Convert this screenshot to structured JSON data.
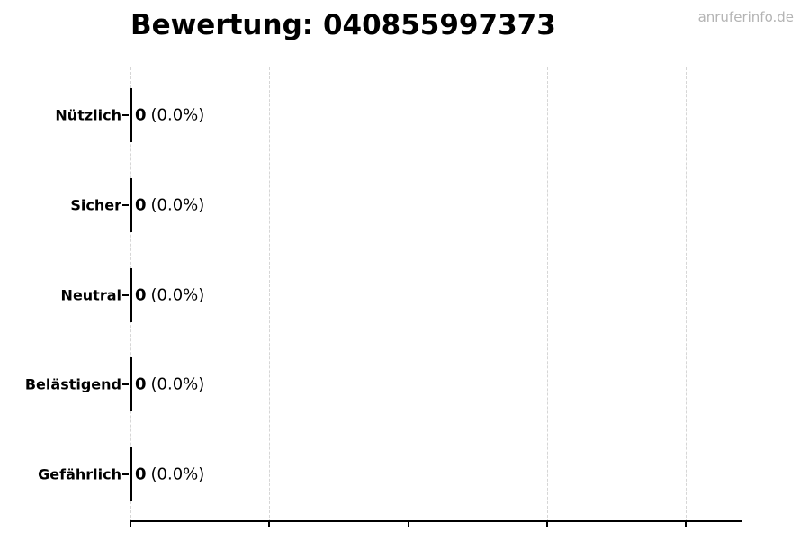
{
  "header": {
    "title": "Bewertung: 040855997373",
    "watermark": "anruferinfo.de"
  },
  "chart_data": {
    "type": "bar",
    "orientation": "horizontal",
    "title": "Bewertung: 040855997373",
    "categories": [
      "Nützlich",
      "Sicher",
      "Neutral",
      "Belästigend",
      "Gefährlich"
    ],
    "values": [
      0,
      0,
      0,
      0,
      0
    ],
    "value_labels": [
      "0 (0.0%)",
      "0 (0.0%)",
      "0 (0.0%)",
      "0 (0.0%)",
      "0 (0.0%)"
    ],
    "bars": [
      {
        "label": "Nützlich",
        "count": "0",
        "percent": "(0.0%)"
      },
      {
        "label": "Sicher",
        "count": "0",
        "percent": "(0.0%)"
      },
      {
        "label": "Neutral",
        "count": "0",
        "percent": "(0.0%)"
      },
      {
        "label": "Belästigend",
        "count": "0",
        "percent": "(0.0%)"
      },
      {
        "label": "Gefährlich",
        "count": "0",
        "percent": "(0.0%)"
      }
    ],
    "xlabel": "",
    "ylabel": "",
    "grid": "vertical-dashed",
    "gridline_count": 5,
    "legend": false,
    "x_tick_labels_visible": false
  },
  "colors": {
    "background": "#ffffff",
    "text": "#000000",
    "watermark": "#b4b4b4",
    "gridline": "#d6d6d6",
    "axis": "#000000",
    "bar_edge": "#000000"
  }
}
